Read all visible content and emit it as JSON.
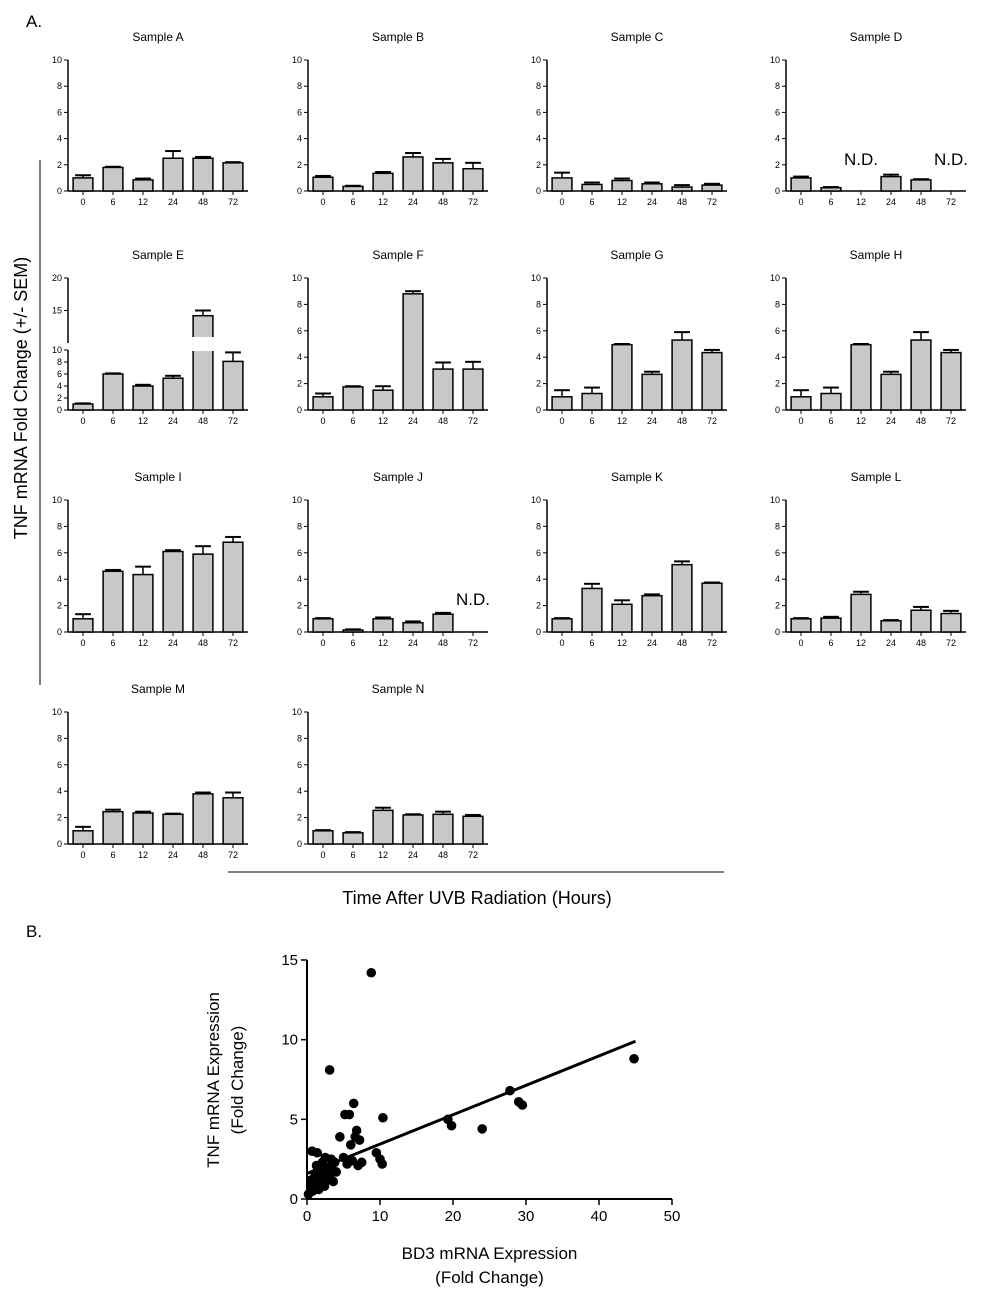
{
  "figure": {
    "panel_a_label": "A.",
    "panel_b_label": "B.",
    "panel_a_ylabel": "TNF mRNA Fold Change (+/- SEM)",
    "panel_a_xlabel": "Time After UVB Radiation (Hours)",
    "nd_label": "N.D."
  },
  "chart_data": [
    {
      "type": "bar",
      "title": "Sample A",
      "categories": [
        "0",
        "6",
        "12",
        "24",
        "48",
        "72"
      ],
      "values": [
        1.0,
        1.8,
        0.85,
        2.5,
        2.5,
        2.15
      ],
      "errors": [
        0.2,
        0.05,
        0.1,
        0.55,
        0.1,
        0.05
      ],
      "nd": [],
      "ylim": [
        0,
        10
      ],
      "yticks": [
        0,
        2,
        4,
        6,
        8,
        10
      ]
    },
    {
      "type": "bar",
      "title": "Sample B",
      "categories": [
        "0",
        "6",
        "12",
        "24",
        "48",
        "72"
      ],
      "values": [
        1.05,
        0.35,
        1.35,
        2.6,
        2.15,
        1.7
      ],
      "errors": [
        0.1,
        0.05,
        0.1,
        0.3,
        0.3,
        0.45
      ],
      "nd": [],
      "ylim": [
        0,
        10
      ],
      "yticks": [
        0,
        2,
        4,
        6,
        8,
        10
      ]
    },
    {
      "type": "bar",
      "title": "Sample C",
      "categories": [
        "0",
        "6",
        "12",
        "24",
        "48",
        "72"
      ],
      "values": [
        1.0,
        0.5,
        0.8,
        0.55,
        0.3,
        0.45
      ],
      "errors": [
        0.4,
        0.15,
        0.15,
        0.1,
        0.15,
        0.1
      ],
      "nd": [],
      "ylim": [
        0,
        10
      ],
      "yticks": [
        0,
        2,
        4,
        6,
        8,
        10
      ]
    },
    {
      "type": "bar",
      "title": "Sample D",
      "categories": [
        "0",
        "6",
        "12",
        "24",
        "48",
        "72"
      ],
      "values": [
        1.0,
        0.25,
        null,
        1.1,
        0.85,
        null
      ],
      "errors": [
        0.1,
        0.05,
        0,
        0.15,
        0.05,
        0
      ],
      "nd": [
        2,
        5
      ],
      "ylim": [
        0,
        10
      ],
      "yticks": [
        0,
        2,
        4,
        6,
        8,
        10
      ]
    },
    {
      "type": "bar",
      "title": "Sample E",
      "categories": [
        "0",
        "6",
        "12",
        "24",
        "48",
        "72"
      ],
      "values": [
        1.0,
        6.0,
        4.0,
        5.3,
        14.2,
        8.1
      ],
      "errors": [
        0.1,
        0.1,
        0.2,
        0.4,
        0.8,
        1.5
      ],
      "nd": [],
      "broken_axis": true,
      "ylim": [
        0,
        20
      ],
      "yticks": [
        0,
        2,
        4,
        6,
        8,
        10,
        15,
        20
      ]
    },
    {
      "type": "bar",
      "title": "Sample F",
      "categories": [
        "0",
        "6",
        "12",
        "24",
        "48",
        "72"
      ],
      "values": [
        1.0,
        1.75,
        1.5,
        8.8,
        3.1,
        3.1
      ],
      "errors": [
        0.25,
        0.05,
        0.3,
        0.2,
        0.5,
        0.55
      ],
      "nd": [],
      "ylim": [
        0,
        10
      ],
      "yticks": [
        0,
        2,
        4,
        6,
        8,
        10
      ]
    },
    {
      "type": "bar",
      "title": "Sample G",
      "categories": [
        "0",
        "6",
        "12",
        "24",
        "48",
        "72"
      ],
      "values": [
        1.0,
        1.25,
        4.95,
        2.7,
        5.3,
        4.35
      ],
      "errors": [
        0.5,
        0.45,
        0.05,
        0.2,
        0.6,
        0.2
      ],
      "nd": [],
      "ylim": [
        0,
        10
      ],
      "yticks": [
        0,
        2,
        4,
        6,
        8,
        10
      ]
    },
    {
      "type": "bar",
      "title": "Sample H",
      "categories": [
        "0",
        "6",
        "12",
        "24",
        "48",
        "72"
      ],
      "values": [
        1.0,
        1.25,
        4.95,
        2.7,
        5.3,
        4.35
      ],
      "errors": [
        0.5,
        0.45,
        0.05,
        0.2,
        0.6,
        0.2
      ],
      "nd": [],
      "ylim": [
        0,
        10
      ],
      "yticks": [
        0,
        2,
        4,
        6,
        8,
        10
      ]
    },
    {
      "type": "bar",
      "title": "Sample I",
      "categories": [
        "0",
        "6",
        "12",
        "24",
        "48",
        "72"
      ],
      "values": [
        1.0,
        4.6,
        4.35,
        6.1,
        5.9,
        6.8
      ],
      "errors": [
        0.35,
        0.1,
        0.6,
        0.1,
        0.6,
        0.4
      ],
      "nd": [],
      "ylim": [
        0,
        10
      ],
      "yticks": [
        0,
        2,
        4,
        6,
        8,
        10
      ]
    },
    {
      "type": "bar",
      "title": "Sample J",
      "categories": [
        "0",
        "6",
        "12",
        "24",
        "48",
        "72"
      ],
      "values": [
        1.0,
        0.15,
        1.0,
        0.7,
        1.35,
        null
      ],
      "errors": [
        0.05,
        0.05,
        0.1,
        0.1,
        0.1,
        0
      ],
      "nd": [
        5
      ],
      "ylim": [
        0,
        10
      ],
      "yticks": [
        0,
        2,
        4,
        6,
        8,
        10
      ]
    },
    {
      "type": "bar",
      "title": "Sample K",
      "categories": [
        "0",
        "6",
        "12",
        "24",
        "48",
        "72"
      ],
      "values": [
        1.0,
        3.3,
        2.1,
        2.75,
        5.1,
        3.7
      ],
      "errors": [
        0.05,
        0.35,
        0.3,
        0.1,
        0.25,
        0.05
      ],
      "nd": [],
      "ylim": [
        0,
        10
      ],
      "yticks": [
        0,
        2,
        4,
        6,
        8,
        10
      ]
    },
    {
      "type": "bar",
      "title": "Sample L",
      "categories": [
        "0",
        "6",
        "12",
        "24",
        "48",
        "72"
      ],
      "values": [
        1.0,
        1.05,
        2.85,
        0.85,
        1.65,
        1.4
      ],
      "errors": [
        0.05,
        0.1,
        0.2,
        0.05,
        0.25,
        0.2
      ],
      "nd": [],
      "ylim": [
        0,
        10
      ],
      "yticks": [
        0,
        2,
        4,
        6,
        8,
        10
      ]
    },
    {
      "type": "bar",
      "title": "Sample M",
      "categories": [
        "0",
        "6",
        "12",
        "24",
        "48",
        "72"
      ],
      "values": [
        1.0,
        2.45,
        2.35,
        2.25,
        3.8,
        3.5
      ],
      "errors": [
        0.3,
        0.15,
        0.1,
        0.05,
        0.1,
        0.4
      ],
      "nd": [],
      "ylim": [
        0,
        10
      ],
      "yticks": [
        0,
        2,
        4,
        6,
        8,
        10
      ]
    },
    {
      "type": "bar",
      "title": "Sample N",
      "categories": [
        "0",
        "6",
        "12",
        "24",
        "48",
        "72"
      ],
      "values": [
        1.0,
        0.85,
        2.55,
        2.2,
        2.25,
        2.1
      ],
      "errors": [
        0.05,
        0.05,
        0.2,
        0.05,
        0.2,
        0.1
      ],
      "nd": [],
      "ylim": [
        0,
        10
      ],
      "yticks": [
        0,
        2,
        4,
        6,
        8,
        10
      ]
    },
    {
      "type": "scatter",
      "xlabel": "BD3 mRNA Expression",
      "xlabel_sub": "(Fold Change)",
      "ylabel": "TNF mRNA Expression",
      "ylabel_sub": "(Fold Change)",
      "xlim": [
        0,
        50
      ],
      "ylim": [
        0,
        15
      ],
      "xticks": [
        0,
        10,
        20,
        30,
        40,
        50
      ],
      "yticks": [
        0,
        5,
        10,
        15
      ],
      "points": [
        [
          0.2,
          0.3
        ],
        [
          0.5,
          0.8
        ],
        [
          0.6,
          1.2
        ],
        [
          0.8,
          0.5
        ],
        [
          1.0,
          1.0
        ],
        [
          1.1,
          1.6
        ],
        [
          1.2,
          0.9
        ],
        [
          1.3,
          2.1
        ],
        [
          1.5,
          1.3
        ],
        [
          1.6,
          0.6
        ],
        [
          1.8,
          1.8
        ],
        [
          2.0,
          1.0
        ],
        [
          2.1,
          2.3
        ],
        [
          2.2,
          1.5
        ],
        [
          2.4,
          0.8
        ],
        [
          2.5,
          2.6
        ],
        [
          2.6,
          1.9
        ],
        [
          2.8,
          1.2
        ],
        [
          3.0,
          2.0
        ],
        [
          3.1,
          1.4
        ],
        [
          3.3,
          2.5
        ],
        [
          3.5,
          1.8
        ],
        [
          3.6,
          1.1
        ],
        [
          3.8,
          2.3
        ],
        [
          4.0,
          1.7
        ],
        [
          0.7,
          3.0
        ],
        [
          1.4,
          2.9
        ],
        [
          4.5,
          3.9
        ],
        [
          5.0,
          2.6
        ],
        [
          5.2,
          5.3
        ],
        [
          5.5,
          2.2
        ],
        [
          5.8,
          5.3
        ],
        [
          6.0,
          3.4
        ],
        [
          6.2,
          2.4
        ],
        [
          6.4,
          6.0
        ],
        [
          6.6,
          3.9
        ],
        [
          6.8,
          4.3
        ],
        [
          7.0,
          2.1
        ],
        [
          7.2,
          3.7
        ],
        [
          7.5,
          2.3
        ],
        [
          3.1,
          8.1
        ],
        [
          8.8,
          14.2
        ],
        [
          9.5,
          2.9
        ],
        [
          10.0,
          2.5
        ],
        [
          10.3,
          2.2
        ],
        [
          10.4,
          5.1
        ],
        [
          19.3,
          5.0
        ],
        [
          19.8,
          4.6
        ],
        [
          24.0,
          4.4
        ],
        [
          27.8,
          6.8
        ],
        [
          29.0,
          6.1
        ],
        [
          29.5,
          5.9
        ],
        [
          44.8,
          8.8
        ]
      ],
      "fit": {
        "x": [
          0,
          45
        ],
        "y": [
          1.6,
          9.9
        ]
      }
    }
  ]
}
